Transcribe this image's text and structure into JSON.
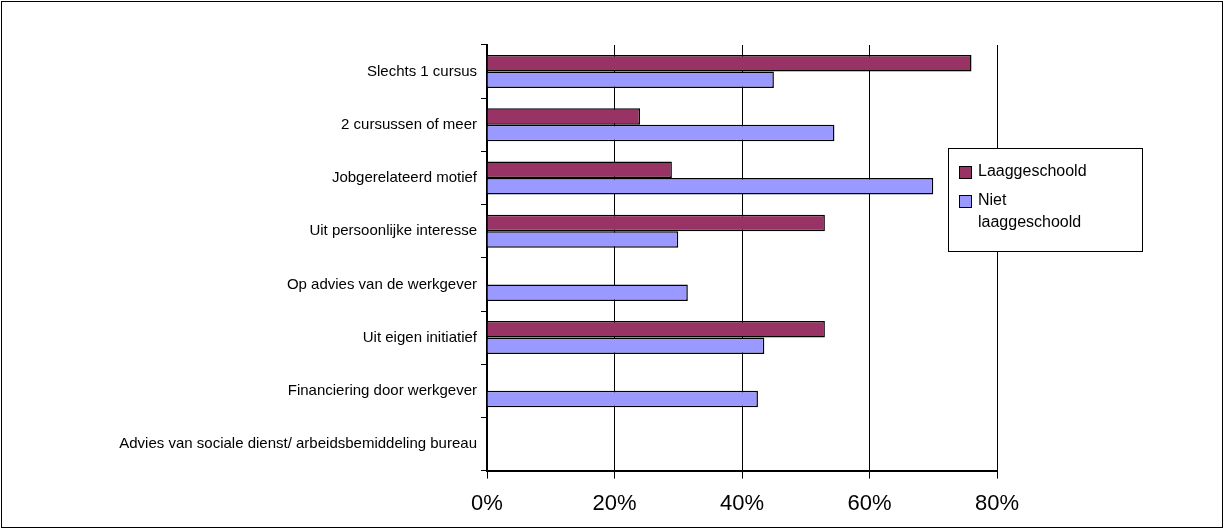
{
  "chart_data": {
    "type": "bar",
    "orientation": "horizontal",
    "categories": [
      "Slechts 1 cursus",
      "2 cursussen of meer",
      "Jobgerelateerd motief",
      "Uit persoonlijke interesse",
      "Op advies van de werkgever",
      "Uit eigen initiatief",
      "Financiering door werkgever",
      "Advies van sociale dienst/ arbeidsbemiddeling bureau"
    ],
    "series": [
      {
        "name": "Laaggeschoold",
        "color": "#993366",
        "values": [
          76,
          24,
          29,
          53,
          0,
          53,
          0,
          0
        ]
      },
      {
        "name": "Niet laaggeschoold",
        "color": "#9999ff",
        "values": [
          45,
          54.5,
          70,
          30,
          31.5,
          43.5,
          42.5,
          0
        ]
      }
    ],
    "xlim": [
      0,
      80
    ],
    "xticks": [
      {
        "value": 0,
        "label": "0%"
      },
      {
        "value": 20,
        "label": "20%"
      },
      {
        "value": 40,
        "label": "40%"
      },
      {
        "value": 60,
        "label": "60%"
      },
      {
        "value": 80,
        "label": "80%"
      }
    ],
    "grid": "x",
    "legend": "right"
  }
}
